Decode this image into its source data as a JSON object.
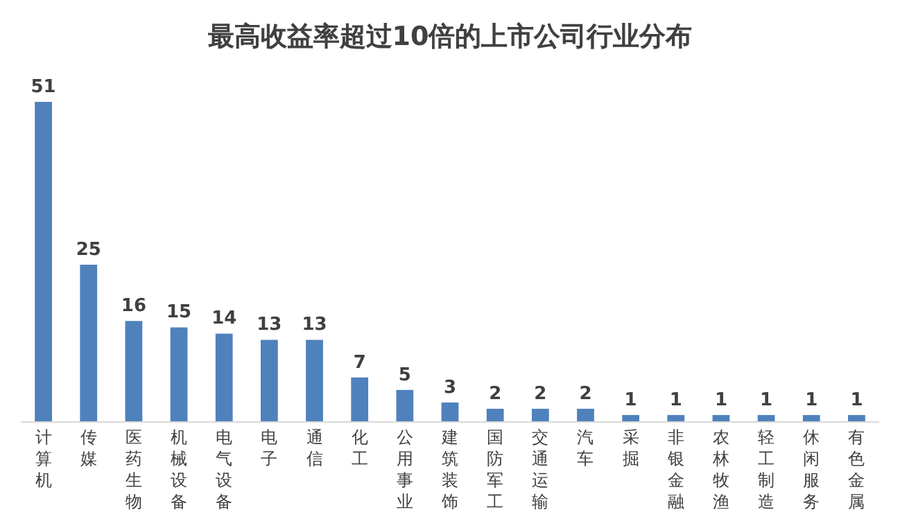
{
  "chart_data": {
    "type": "bar",
    "title": "最高收益率超过10倍的上市公司行业分布",
    "categories": [
      "计算机",
      "传媒",
      "医药生物",
      "机械设备",
      "电气设备",
      "电子",
      "通信",
      "化工",
      "公用事业",
      "建筑装饰",
      "国防军工",
      "交通运输",
      "汽车",
      "采掘",
      "非银金融",
      "农林牧渔",
      "轻工制造",
      "休闲服务",
      "有色金属"
    ],
    "values": [
      51,
      25,
      16,
      15,
      14,
      13,
      13,
      7,
      5,
      3,
      2,
      2,
      2,
      1,
      1,
      1,
      1,
      1,
      1
    ],
    "color": "#4f81bd",
    "data_labels": true
  }
}
